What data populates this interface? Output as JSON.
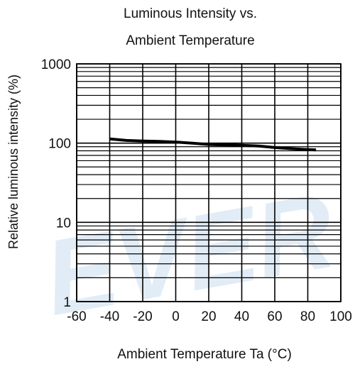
{
  "chart_data": {
    "type": "line",
    "title_lines": [
      "Luminous Intensity vs.",
      "Ambient Temperature"
    ],
    "xlabel": "Ambient Temperature Ta (°C)",
    "ylabel": "Relative luminous intensity  (%)",
    "xlim": [
      -60,
      100
    ],
    "ylim": [
      1,
      1000
    ],
    "yscale": "log",
    "grid": true,
    "x_ticks": [
      -60,
      -40,
      -20,
      0,
      20,
      40,
      60,
      80,
      100
    ],
    "x_tick_labels": [
      "-60",
      "-40",
      "-20",
      "0",
      "20",
      "40",
      "60",
      "80",
      "100"
    ],
    "y_ticks": [
      1,
      10,
      100,
      1000
    ],
    "y_tick_labels": [
      "1",
      "10",
      "100",
      "1000"
    ],
    "series": [
      {
        "x": [
          -40,
          -30,
          -20,
          -10,
          0,
          10,
          20,
          30,
          40,
          50,
          60,
          70,
          80,
          85
        ],
        "y": [
          113,
          108,
          106,
          105,
          103,
          100,
          96,
          95,
          94,
          92,
          88,
          85,
          83,
          82
        ]
      }
    ],
    "watermark": "EVER",
    "colors": {
      "grid": "#000000",
      "line": "#000000",
      "watermark": "#dce9f5"
    }
  }
}
